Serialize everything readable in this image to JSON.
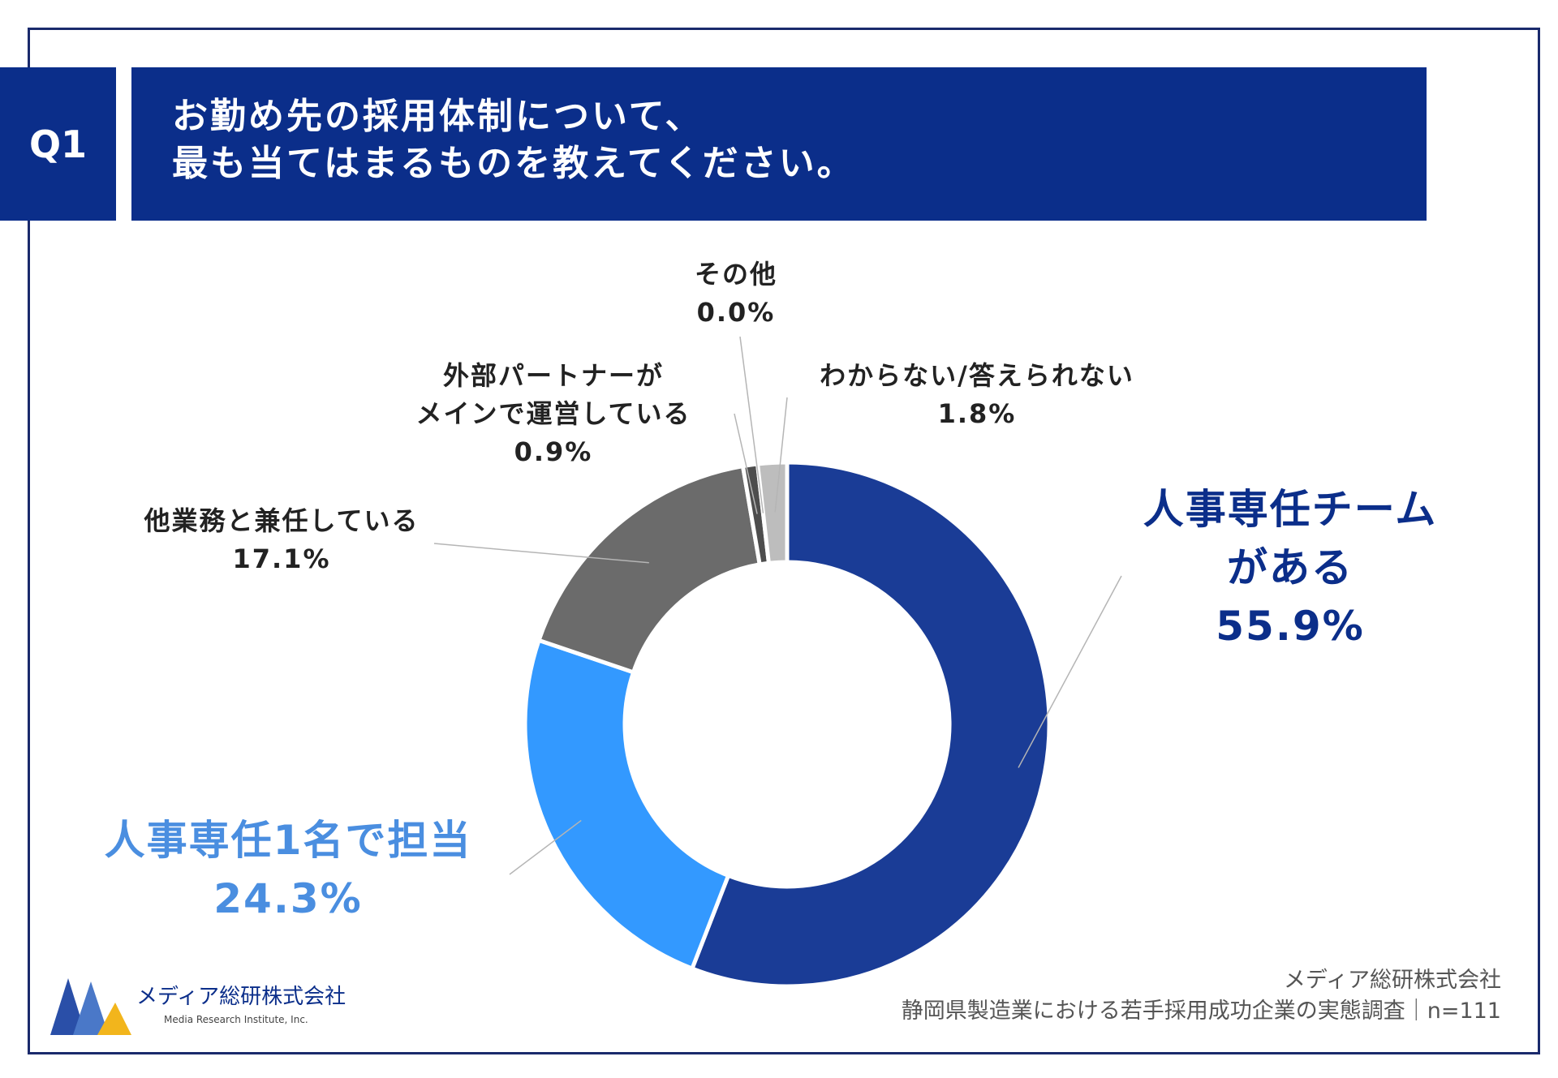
{
  "header": {
    "question_no": "Q1",
    "title_lines": [
      "お勤め先の採用体制について、",
      "最も当てはまるものを教えてください。"
    ]
  },
  "chart_data": {
    "type": "pie",
    "subtype": "donut",
    "slices": [
      {
        "label": "人事専任チームがある",
        "label_lines": [
          "人事専任チーム",
          "がある"
        ],
        "value": 55.9,
        "value_text": "55.9%",
        "color": "#1a3c96"
      },
      {
        "label": "人事専任1名で担当",
        "label_lines": [
          "人事専任1名で担当"
        ],
        "value": 24.3,
        "value_text": "24.3%",
        "color": "#3399ff"
      },
      {
        "label": "他業務と兼任している",
        "label_lines": [
          "他業務と兼任している"
        ],
        "value": 17.1,
        "value_text": "17.1%",
        "color": "#6b6b6b"
      },
      {
        "label": "外部パートナーがメインで運営している",
        "label_lines": [
          "外部パートナーが",
          "メインで運営している"
        ],
        "value": 0.9,
        "value_text": "0.9%",
        "color": "#4d4d4d"
      },
      {
        "label": "その他",
        "label_lines": [
          "その他"
        ],
        "value": 0.0,
        "value_text": "0.0%",
        "color": "#999999"
      },
      {
        "label": "わからない/答えられない",
        "label_lines": [
          "わからない/答えられない"
        ],
        "value": 1.8,
        "value_text": "1.8%",
        "color": "#bdbdbd"
      }
    ],
    "start_angle": "12 o'clock",
    "direction": "clockwise",
    "legend": "none"
  },
  "footer": {
    "company_name": "メディア総研株式会社",
    "company_sub": "Media Research Institute, Inc.",
    "source_line1": "メディア総研株式会社",
    "source_line2": "静岡県製造業における若手採用成功企業の実態調査｜n=111"
  },
  "colors": {
    "brand_navy": "#0b2e8a",
    "logo_yellow": "#f2b51c"
  }
}
